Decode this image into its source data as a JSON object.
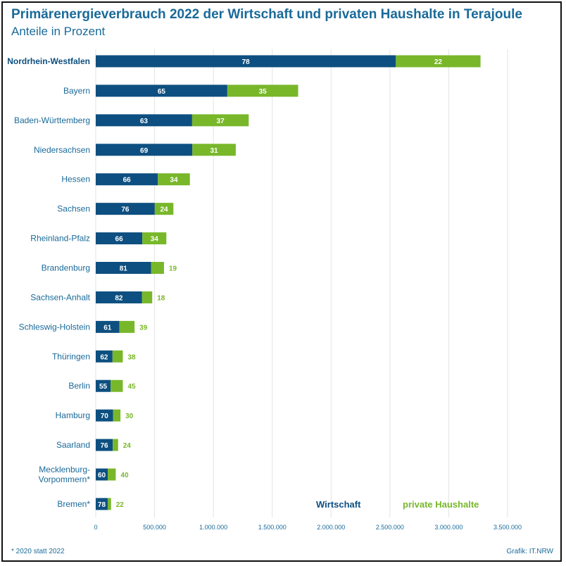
{
  "title": "Primärenergieverbrauch 2022 der Wirtschaft und privaten Haushalte in Terajoule",
  "subtitle": "Anteile in Prozent",
  "footnote": "*  2020 statt 2022",
  "credit": "Grafik: IT.NRW",
  "colors": {
    "wirtschaft": "#0d4f80",
    "haushalte": "#78b72a",
    "text": "#1a6a99",
    "segment_text": "#ffffff"
  },
  "chart_data": {
    "type": "bar",
    "orientation": "horizontal",
    "stacked": true,
    "title": "Primärenergieverbrauch 2022 der Wirtschaft und privaten Haushalte in Terajoule",
    "subtitle": "Anteile in Prozent",
    "xlabel": "",
    "ylabel": "",
    "xlim": [
      0,
      3500000
    ],
    "x_ticks": [
      0,
      500000,
      1000000,
      1500000,
      2000000,
      2500000,
      3000000,
      3500000
    ],
    "x_tick_labels": [
      "0",
      "500.000",
      "1.000.000",
      "1.500.000",
      "2.000.000",
      "2.500.000",
      "3.000.000",
      "3.500.000"
    ],
    "grid": true,
    "legend_position": "bottom-right",
    "categories": [
      "Nordrhein-Westfalen",
      "Bayern",
      "Baden-Württemberg",
      "Niedersachsen",
      "Hessen",
      "Sachsen",
      "Rheinland-Pfalz",
      "Brandenburg",
      "Sachsen-Anhalt",
      "Schleswig-Holstein",
      "Thüringen",
      "Berlin",
      "Hamburg",
      "Saarland",
      "Mecklenburg-Vorpommern*",
      "Bremen*"
    ],
    "totals": [
      3270000,
      1720000,
      1300000,
      1190000,
      800000,
      660000,
      600000,
      580000,
      480000,
      330000,
      230000,
      230000,
      210000,
      190000,
      170000,
      130000
    ],
    "series": [
      {
        "name": "Wirtschaft",
        "shares": [
          78,
          65,
          63,
          69,
          66,
          76,
          66,
          81,
          82,
          61,
          62,
          55,
          70,
          76,
          60,
          78
        ],
        "values": [
          2550600,
          1118000,
          819000,
          821100,
          528000,
          501600,
          396000,
          469800,
          393600,
          201300,
          142600,
          126500,
          147000,
          144400,
          102000,
          101400
        ]
      },
      {
        "name": "private Haushalte",
        "shares": [
          22,
          35,
          37,
          31,
          34,
          24,
          34,
          19,
          18,
          39,
          38,
          45,
          30,
          24,
          40,
          22
        ],
        "values": [
          719400,
          602000,
          481000,
          368900,
          272000,
          158400,
          204000,
          110200,
          86400,
          128700,
          87400,
          103500,
          63000,
          45600,
          68000,
          28600
        ]
      }
    ]
  }
}
